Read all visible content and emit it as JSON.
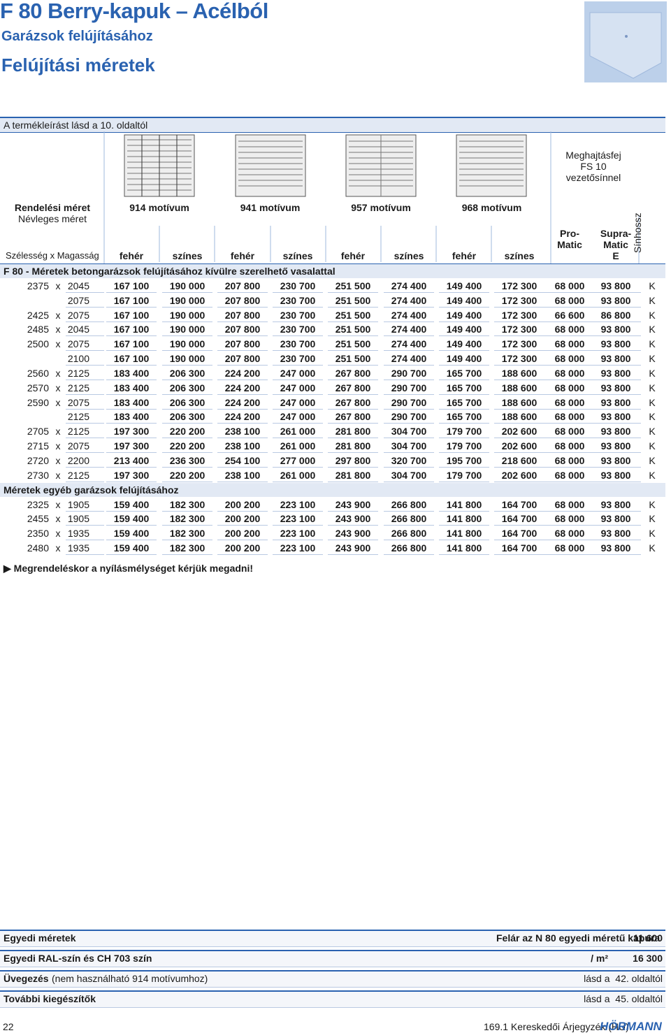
{
  "header": {
    "title": "F 80 Berry-kapuk – Acélból",
    "subtitle": "Garázsok felújításához",
    "section": "Felújítási méretek"
  },
  "note": "A termékleírást lásd a 10. oldaltól",
  "table": {
    "order_size": "Rendelési méret",
    "nominal_size": "Névleges méret",
    "dimensions": "Szélesség x Magasság",
    "motifs": [
      {
        "name": "914 motívum",
        "white": "fehér",
        "colored": "színes"
      },
      {
        "name": "941 motívum",
        "white": "fehér",
        "colored": "színes"
      },
      {
        "name": "957 motívum",
        "white": "fehér",
        "colored": "színes"
      },
      {
        "name": "968 motívum",
        "white": "fehér",
        "colored": "színes"
      }
    ],
    "drive_head": [
      "Meghajtásfej",
      "FS 10",
      "vezetősínnel"
    ],
    "promatic": [
      "Pro-",
      "Matic"
    ],
    "supramatic": [
      "Supra-",
      "Matic",
      "E"
    ],
    "rail": "Sínhossz",
    "groups": [
      {
        "title": "F 80 - Méretek betongarázsok felújításához kívülre szerelhető vasalattal",
        "rows": [
          {
            "width": "2375",
            "x": "x",
            "height": "2045",
            "prices": [
              "167 100",
              "190 000",
              "207 800",
              "230 700",
              "251 500",
              "274 400",
              "149 400",
              "172 300",
              "68 000",
              "93 800"
            ],
            "rail": "K"
          },
          {
            "height": "2075",
            "prices": [
              "167 100",
              "190 000",
              "207 800",
              "230 700",
              "251 500",
              "274 400",
              "149 400",
              "172 300",
              "68 000",
              "93 800"
            ],
            "rail": "K"
          },
          {
            "width": "2425",
            "x": "x",
            "height": "2075",
            "prices": [
              "167 100",
              "190 000",
              "207 800",
              "230 700",
              "251 500",
              "274 400",
              "149 400",
              "172 300",
              "66 600",
              "86 800"
            ],
            "rail": "K"
          },
          {
            "width": "2485",
            "x": "x",
            "height": "2045",
            "prices": [
              "167 100",
              "190 000",
              "207 800",
              "230 700",
              "251 500",
              "274 400",
              "149 400",
              "172 300",
              "68 000",
              "93 800"
            ],
            "rail": "K"
          },
          {
            "width": "2500",
            "x": "x",
            "height": "2075",
            "prices": [
              "167 100",
              "190 000",
              "207 800",
              "230 700",
              "251 500",
              "274 400",
              "149 400",
              "172 300",
              "68 000",
              "93 800"
            ],
            "rail": "K"
          },
          {
            "height": "2100",
            "prices": [
              "167 100",
              "190 000",
              "207 800",
              "230 700",
              "251 500",
              "274 400",
              "149 400",
              "172 300",
              "68 000",
              "93 800"
            ],
            "rail": "K"
          },
          {
            "width": "2560",
            "x": "x",
            "height": "2125",
            "prices": [
              "183 400",
              "206 300",
              "224 200",
              "247 000",
              "267 800",
              "290 700",
              "165 700",
              "188 600",
              "68 000",
              "93 800"
            ],
            "rail": "K"
          },
          {
            "width": "2570",
            "x": "x",
            "height": "2125",
            "prices": [
              "183 400",
              "206 300",
              "224 200",
              "247 000",
              "267 800",
              "290 700",
              "165 700",
              "188 600",
              "68 000",
              "93 800"
            ],
            "rail": "K"
          },
          {
            "width": "2590",
            "x": "x",
            "height": "2075",
            "prices": [
              "183 400",
              "206 300",
              "224 200",
              "247 000",
              "267 800",
              "290 700",
              "165 700",
              "188 600",
              "68 000",
              "93 800"
            ],
            "rail": "K"
          },
          {
            "height": "2125",
            "prices": [
              "183 400",
              "206 300",
              "224 200",
              "247 000",
              "267 800",
              "290 700",
              "165 700",
              "188 600",
              "68 000",
              "93 800"
            ],
            "rail": "K"
          },
          {
            "width": "2705",
            "x": "x",
            "height": "2125",
            "prices": [
              "197 300",
              "220 200",
              "238 100",
              "261 000",
              "281 800",
              "304 700",
              "179 700",
              "202 600",
              "68 000",
              "93 800"
            ],
            "rail": "K"
          },
          {
            "width": "2715",
            "x": "x",
            "height": "2075",
            "prices": [
              "197 300",
              "220 200",
              "238 100",
              "261 000",
              "281 800",
              "304 700",
              "179 700",
              "202 600",
              "68 000",
              "93 800"
            ],
            "rail": "K"
          },
          {
            "width": "2720",
            "x": "x",
            "height": "2200",
            "prices": [
              "213 400",
              "236 300",
              "254 100",
              "277 000",
              "297 800",
              "320 700",
              "195 700",
              "218 600",
              "68 000",
              "93 800"
            ],
            "rail": "K"
          },
          {
            "width": "2730",
            "x": "x",
            "height": "2125",
            "prices": [
              "197 300",
              "220 200",
              "238 100",
              "261 000",
              "281 800",
              "304 700",
              "179 700",
              "202 600",
              "68 000",
              "93 800"
            ],
            "rail": "K"
          }
        ]
      },
      {
        "title": "Méretek egyéb garázsok felújításához",
        "rows": [
          {
            "width": "2325",
            "x": "x",
            "height": "1905",
            "prices": [
              "159 400",
              "182 300",
              "200 200",
              "223 100",
              "243 900",
              "266 800",
              "141 800",
              "164 700",
              "68 000",
              "93 800"
            ],
            "rail": "K"
          },
          {
            "width": "2455",
            "x": "x",
            "height": "1905",
            "prices": [
              "159 400",
              "182 300",
              "200 200",
              "223 100",
              "243 900",
              "266 800",
              "141 800",
              "164 700",
              "68 000",
              "93 800"
            ],
            "rail": "K"
          },
          {
            "width": "2350",
            "x": "x",
            "height": "1935",
            "prices": [
              "159 400",
              "182 300",
              "200 200",
              "223 100",
              "243 900",
              "266 800",
              "141 800",
              "164 700",
              "68 000",
              "93 800"
            ],
            "rail": "K"
          },
          {
            "width": "2480",
            "x": "x",
            "height": "1935",
            "prices": [
              "159 400",
              "182 300",
              "200 200",
              "223 100",
              "243 900",
              "266 800",
              "141 800",
              "164 700",
              "68 000",
              "93 800"
            ],
            "rail": "K"
          }
        ]
      }
    ]
  },
  "order_note": "Megrendeléskor a nyílásmélységet kérjük megadni!",
  "extras": [
    {
      "label": "Egyedi méretek",
      "desc": "Felár az N 80 egyedi méretű kapura",
      "price": "11 600"
    },
    {
      "label": "Egyedi RAL-szín és CH 703 szín",
      "desc": "/ m²",
      "price": "16 300"
    },
    {
      "label": "Üvegezés",
      "detail": "(nem használható 914 motívumhoz)",
      "ref": "lásd a  42. oldaltól"
    },
    {
      "label": "További kiegészítők",
      "ref": "lásd a  45. oldaltól"
    }
  ],
  "footer": {
    "page": "22",
    "catalog": "169.1 Kereskedői Árjegyzék (HU)",
    "brand": "HÖRMANN"
  }
}
